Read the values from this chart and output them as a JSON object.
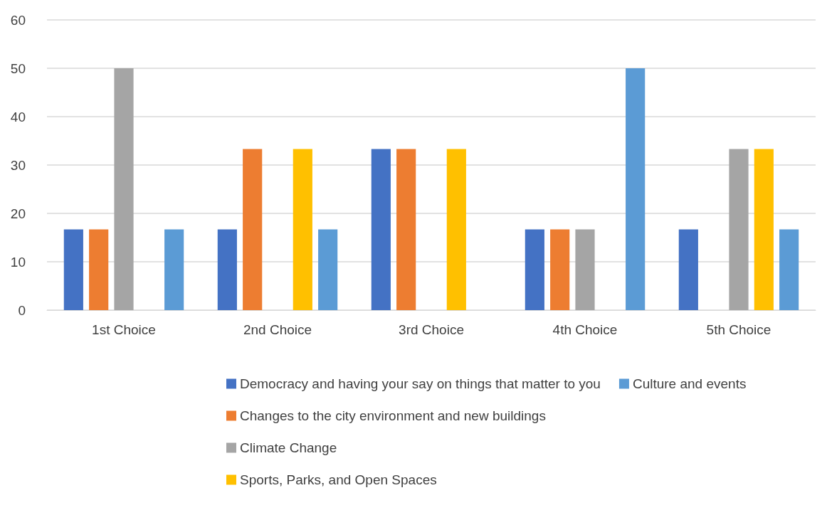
{
  "chart_data": {
    "type": "bar",
    "categories": [
      "1st Choice",
      "2nd Choice",
      "3rd Choice",
      "4th Choice",
      "5th Choice"
    ],
    "series": [
      {
        "name": "Democracy and having your say on things that matter to you",
        "color": "#4472c4",
        "values": [
          16.7,
          16.7,
          33.3,
          16.7,
          16.7
        ]
      },
      {
        "name": "Changes to the city environment and new buildings",
        "color": "#ed7d31",
        "values": [
          16.7,
          33.3,
          33.3,
          16.7,
          0
        ]
      },
      {
        "name": "Climate Change",
        "color": "#a5a5a5",
        "values": [
          50,
          0,
          0,
          16.7,
          33.3
        ]
      },
      {
        "name": "Sports, Parks, and Open Spaces",
        "color": "#ffc000",
        "values": [
          0,
          33.3,
          33.3,
          0,
          33.3
        ]
      },
      {
        "name": "Culture and events",
        "color": "#5b9bd5",
        "values": [
          16.7,
          16.7,
          0,
          50,
          16.7
        ]
      }
    ],
    "ylim": [
      0,
      60
    ],
    "yticks": [
      0,
      10,
      20,
      30,
      40,
      50,
      60
    ],
    "grid": "y",
    "legend": "bottom"
  }
}
